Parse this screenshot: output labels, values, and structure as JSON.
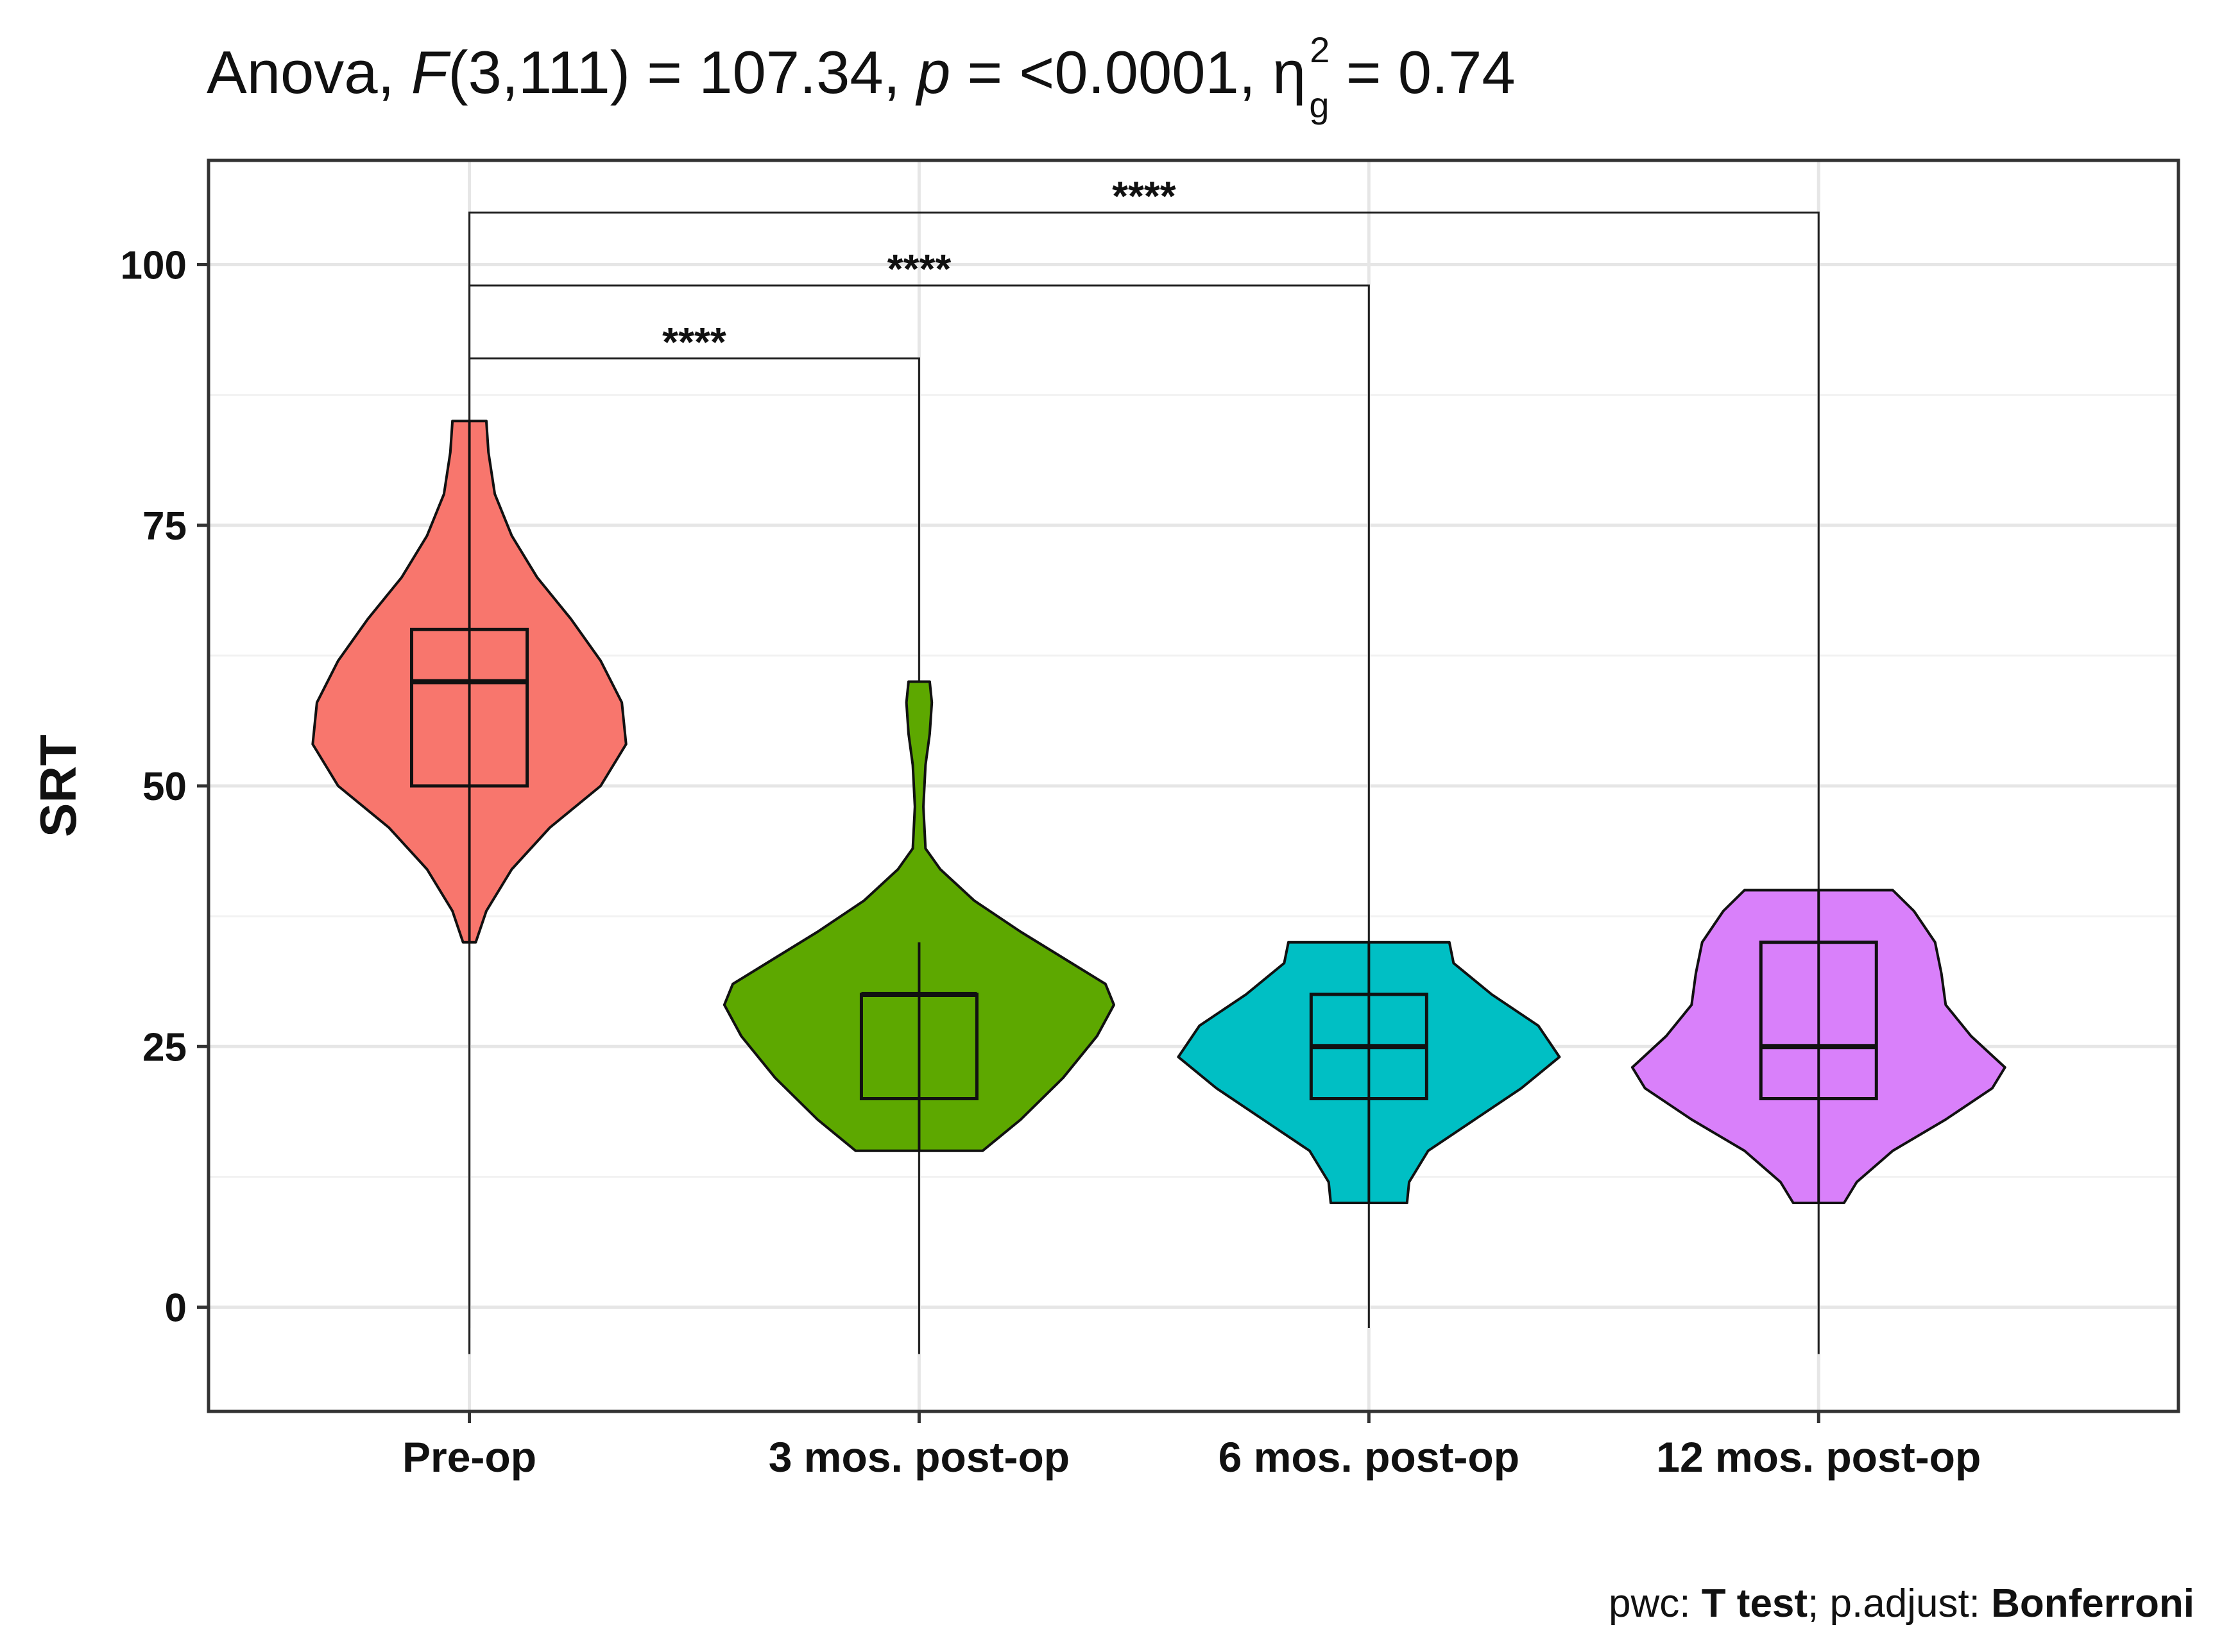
{
  "title": {
    "prefix": "Anova, ",
    "f_symbol": "F",
    "f_args": "(3,111) = 107.34, ",
    "p_symbol": "p",
    "p_value": " = <0.0001, ",
    "eta": "η",
    "eta_sup": "2",
    "eta_sub": "g",
    "eta_value": " = 0.74"
  },
  "caption": {
    "pwc_label": "pwc: ",
    "pwc_method": "T test",
    "adjust_label": "; p.adjust: ",
    "adjust_method": "Bonferroni"
  },
  "chart_data": {
    "type": "violin",
    "ylabel": "SRT",
    "xlabel": "",
    "ylim": [
      -10,
      110
    ],
    "y_ticks": [
      0,
      25,
      50,
      75,
      100
    ],
    "grid": true,
    "categories": [
      "Pre-op",
      "3 mos. post-op",
      "6 mos. post-op",
      "12 mos. post-op"
    ],
    "colors": [
      "#F8766D",
      "#5DA800",
      "#00BFC4",
      "#D980FA"
    ],
    "groups": [
      {
        "category": "Pre-op",
        "min": 35,
        "q1": 50,
        "median": 60,
        "q3": 65,
        "max": 85,
        "density": [
          [
            35,
            0.03
          ],
          [
            38,
            0.08
          ],
          [
            42,
            0.2
          ],
          [
            46,
            0.38
          ],
          [
            50,
            0.62
          ],
          [
            54,
            0.74
          ],
          [
            58,
            0.72
          ],
          [
            62,
            0.62
          ],
          [
            66,
            0.48
          ],
          [
            70,
            0.32
          ],
          [
            74,
            0.2
          ],
          [
            78,
            0.12
          ],
          [
            82,
            0.09
          ],
          [
            85,
            0.08
          ]
        ]
      },
      {
        "category": "3 mos. post-op",
        "min": 15,
        "q1": 20,
        "median": 30,
        "q3": 30,
        "max": 35,
        "density": [
          [
            15,
            0.3
          ],
          [
            18,
            0.48
          ],
          [
            22,
            0.68
          ],
          [
            26,
            0.84
          ],
          [
            29,
            0.92
          ],
          [
            31,
            0.88
          ],
          [
            33,
            0.72
          ],
          [
            36,
            0.48
          ],
          [
            39,
            0.26
          ],
          [
            42,
            0.1
          ],
          [
            44,
            0.03
          ],
          [
            48,
            0.02
          ],
          [
            52,
            0.03
          ],
          [
            55,
            0.05
          ],
          [
            58,
            0.06
          ],
          [
            60,
            0.05
          ]
        ]
      },
      {
        "category": "6 mos. post-op",
        "min": 10,
        "q1": 20,
        "median": 25,
        "q3": 30,
        "max": 35,
        "density": [
          [
            10,
            0.18
          ],
          [
            12,
            0.19
          ],
          [
            15,
            0.28
          ],
          [
            18,
            0.5
          ],
          [
            21,
            0.72
          ],
          [
            24,
            0.9
          ],
          [
            27,
            0.8
          ],
          [
            30,
            0.58
          ],
          [
            33,
            0.4
          ],
          [
            35,
            0.38
          ]
        ]
      },
      {
        "category": "12 mos. post-op",
        "min": 10,
        "q1": 20,
        "median": 25,
        "q3": 35,
        "max": 40,
        "density": [
          [
            10,
            0.12
          ],
          [
            12,
            0.18
          ],
          [
            15,
            0.35
          ],
          [
            18,
            0.6
          ],
          [
            21,
            0.82
          ],
          [
            23,
            0.88
          ],
          [
            26,
            0.72
          ],
          [
            29,
            0.6
          ],
          [
            32,
            0.58
          ],
          [
            35,
            0.55
          ],
          [
            38,
            0.45
          ],
          [
            40,
            0.35
          ]
        ]
      }
    ],
    "comparisons": [
      {
        "group1": "Pre-op",
        "group2": "3 mos. post-op",
        "label": "****",
        "y": 91
      },
      {
        "group1": "Pre-op",
        "group2": "6 mos. post-op",
        "label": "****",
        "y": 98
      },
      {
        "group1": "Pre-op",
        "group2": "12 mos. post-op",
        "label": "****",
        "y": 105
      }
    ]
  }
}
